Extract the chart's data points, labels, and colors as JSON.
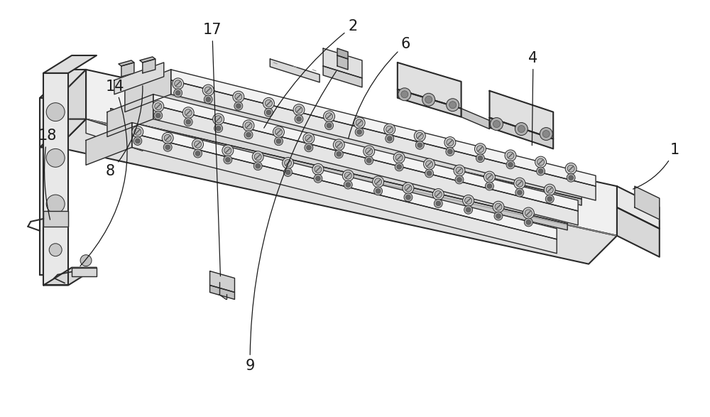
{
  "background_color": "#ffffff",
  "line_color": "#2a2a2a",
  "label_color": "#1a1a1a",
  "figsize": [
    10.0,
    5.87
  ],
  "dpi": 100,
  "label_fontsize": 15
}
